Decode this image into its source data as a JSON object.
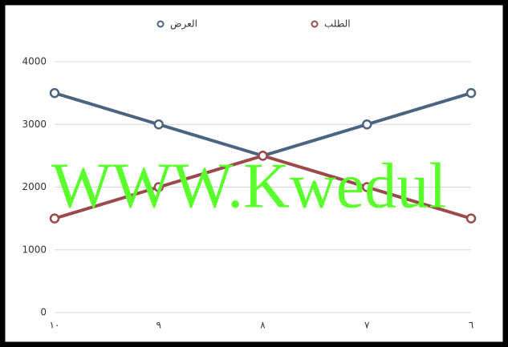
{
  "chart_data": {
    "type": "line",
    "categories": [
      "١٠",
      "٩",
      "٨",
      "٧",
      "٦"
    ],
    "series": [
      {
        "name": "العرض",
        "color": "#4b6580",
        "values": [
          3500,
          3000,
          2500,
          3000,
          3500
        ]
      },
      {
        "name": "الطلب",
        "color": "#9b4a4a",
        "values": [
          1500,
          2000,
          2500,
          2000,
          1500
        ]
      }
    ],
    "ylim": [
      0,
      4000
    ],
    "yticks": [
      0,
      1000,
      2000,
      3000,
      4000
    ],
    "grid": true,
    "legend": "top",
    "annotations": [
      "WWW.Kwedul"
    ]
  }
}
